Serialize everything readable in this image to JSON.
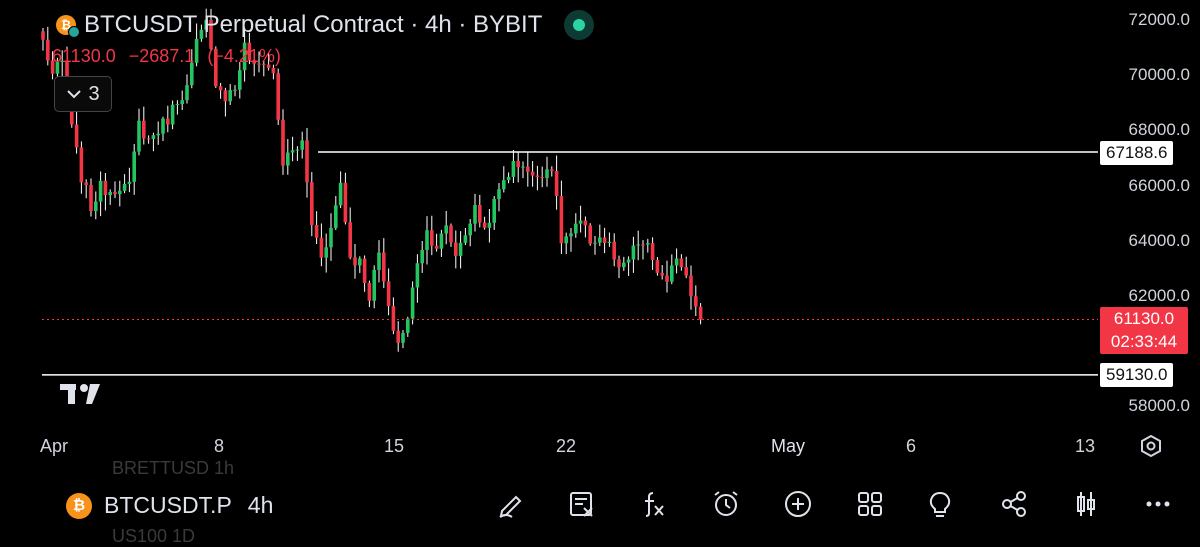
{
  "header": {
    "coin_glyph": "₿",
    "title": "BTCUSDT Perpetual Contract · 4h · BYBIT",
    "last": "61130.0",
    "change": "−2687.1",
    "change_pct": "(−4.21%)",
    "indicators_count": "3"
  },
  "price_axis": {
    "labels": [
      "72000.0",
      "70000.0",
      "68000.0",
      "66000.0",
      "64000.0",
      "62000.0",
      "58000.0"
    ],
    "tags": {
      "upper_line": "67188.6",
      "current_price": "61130.0",
      "countdown": "02:33:44",
      "lower_line": "59130.0"
    }
  },
  "time_axis": {
    "labels": [
      "Apr",
      "8",
      "15",
      "22",
      "May",
      "6",
      "13"
    ]
  },
  "bottom_bar": {
    "symbol": "BTCUSDT.P",
    "timeframe": "4h",
    "ghost_above": "BRETTUSD  1h",
    "ghost_below": "US100  1D",
    "tools": [
      "pencil-icon",
      "news-icon",
      "fx-icon",
      "alarm-icon",
      "add-icon",
      "grid-icon",
      "idea-icon",
      "share-icon",
      "chart-type-icon",
      "more-icon"
    ]
  },
  "colors": {
    "up": "#22c55e",
    "down": "#f23645",
    "line": "#ffffff"
  },
  "chart_data": {
    "type": "candlestick",
    "symbol": "BTCUSDT Perpetual Contract",
    "interval": "4h",
    "exchange": "BYBIT",
    "x_labels": [
      "Apr",
      "8",
      "15",
      "22",
      "May",
      "6",
      "13"
    ],
    "ylim": [
      57000,
      72600
    ],
    "horizontal_lines": [
      67188.6,
      59130.0
    ],
    "current_price": 61130.0,
    "anchors": [
      [
        0,
        71200
      ],
      [
        1,
        70000
      ],
      [
        2,
        70400
      ],
      [
        3,
        68000
      ],
      [
        4,
        66300
      ],
      [
        5,
        65200
      ],
      [
        6,
        65900
      ],
      [
        7,
        65800
      ],
      [
        8,
        66000
      ],
      [
        9,
        65900
      ],
      [
        10,
        68200
      ],
      [
        11,
        67600
      ],
      [
        12,
        68000
      ],
      [
        13,
        68400
      ],
      [
        14,
        69100
      ],
      [
        15,
        69500
      ],
      [
        16,
        71100
      ],
      [
        17,
        71800
      ],
      [
        18,
        69800
      ],
      [
        19,
        69200
      ],
      [
        20,
        69500
      ],
      [
        21,
        71000
      ],
      [
        22,
        70200
      ],
      [
        23,
        70500
      ],
      [
        24,
        70000
      ],
      [
        25,
        66800
      ],
      [
        26,
        67200
      ],
      [
        27,
        67500
      ],
      [
        28,
        64600
      ],
      [
        29,
        63500
      ],
      [
        30,
        64400
      ],
      [
        31,
        66100
      ],
      [
        32,
        63400
      ],
      [
        33,
        63200
      ],
      [
        34,
        62000
      ],
      [
        35,
        63500
      ],
      [
        36,
        61400
      ],
      [
        37,
        60300
      ],
      [
        38,
        61100
      ],
      [
        39,
        63300
      ],
      [
        40,
        64300
      ],
      [
        41,
        63800
      ],
      [
        42,
        64400
      ],
      [
        43,
        63500
      ],
      [
        44,
        64300
      ],
      [
        45,
        65100
      ],
      [
        46,
        64400
      ],
      [
        47,
        65300
      ],
      [
        48,
        66200
      ],
      [
        49,
        66700
      ],
      [
        50,
        66800
      ],
      [
        51,
        66200
      ],
      [
        52,
        66500
      ],
      [
        53,
        66700
      ],
      [
        54,
        64000
      ],
      [
        55,
        64200
      ],
      [
        56,
        64600
      ],
      [
        57,
        64000
      ],
      [
        58,
        64100
      ],
      [
        59,
        63800
      ],
      [
        60,
        62800
      ],
      [
        61,
        63300
      ],
      [
        62,
        63900
      ],
      [
        63,
        63700
      ],
      [
        64,
        62900
      ],
      [
        65,
        62300
      ],
      [
        66,
        63500
      ],
      [
        67,
        62800
      ],
      [
        68,
        61600
      ]
    ]
  }
}
